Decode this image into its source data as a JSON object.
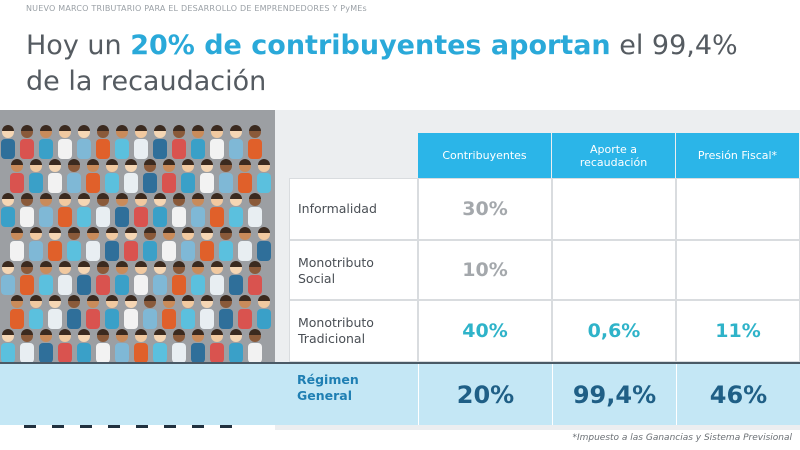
{
  "header": {
    "kicker": "NUEVO MARCO TRIBUTARIO PARA EL DESARROLLO DE EMPRENDEDORES Y PyMEs",
    "title_lead": "Hoy un ",
    "title_highlight": "20% de contribuyentes aportan",
    "title_tail": " el 99,4%",
    "title_line2": "de la recaudación"
  },
  "table": {
    "columns": [
      "Contribuyentes",
      "Aporte a recaudación",
      "Presión Fiscal*"
    ],
    "rows": [
      {
        "label": [
          "Informalidad"
        ],
        "cells": [
          "30%",
          null,
          null
        ],
        "style": "muted"
      },
      {
        "label": [
          "Monotributo",
          "Social"
        ],
        "cells": [
          "10%",
          null,
          null
        ],
        "style": "muted"
      },
      {
        "label": [
          "Monotributo",
          "Tradicional"
        ],
        "cells": [
          "40%",
          "0,6%",
          "11%"
        ],
        "style": "accent"
      },
      {
        "label": [
          "Régimen",
          "General"
        ],
        "cells": [
          "20%",
          "99,4%",
          "46%"
        ],
        "style": "highlight"
      }
    ]
  },
  "footnote": "*Impuesto a las Ganancias y Sistema Previsional"
}
